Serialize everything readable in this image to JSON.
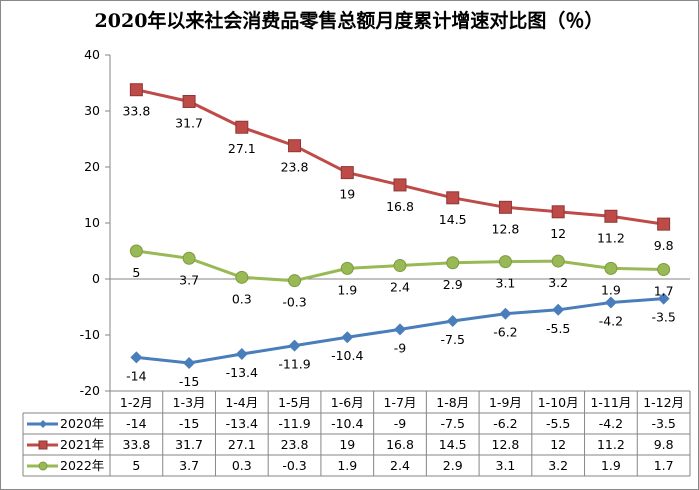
{
  "chart_data": {
    "type": "line",
    "title": "2020年以来社会消费品零售总额月度累计增速对比图（％）",
    "categories": [
      "1-2月",
      "1-3月",
      "1-4月",
      "1-5月",
      "1-6月",
      "1-7月",
      "1-8月",
      "1-9月",
      "1-10月",
      "1-11月",
      "1-12月"
    ],
    "ylim": [
      -20,
      40
    ],
    "yticks": [
      "40",
      "30",
      "20",
      "10",
      "0",
      "-10",
      "-20"
    ],
    "grid": false,
    "legend_placement": "data-table",
    "series": [
      {
        "name": "2020年",
        "color": "#4a7ebb",
        "marker": "diamond",
        "values": [
          -14,
          -15,
          -13.4,
          -11.9,
          -10.4,
          -9,
          -7.5,
          -6.2,
          -5.5,
          -4.2,
          -3.5
        ]
      },
      {
        "name": "2021年",
        "color": "#be4b48",
        "marker": "square",
        "values": [
          33.8,
          31.7,
          27.1,
          23.8,
          19,
          16.8,
          14.5,
          12.8,
          12,
          11.2,
          9.8
        ]
      },
      {
        "name": "2022年",
        "color": "#98b954",
        "marker": "circle",
        "values": [
          5,
          3.7,
          0.3,
          -0.3,
          1.9,
          2.4,
          2.9,
          3.1,
          3.2,
          1.9,
          1.7
        ]
      }
    ]
  }
}
